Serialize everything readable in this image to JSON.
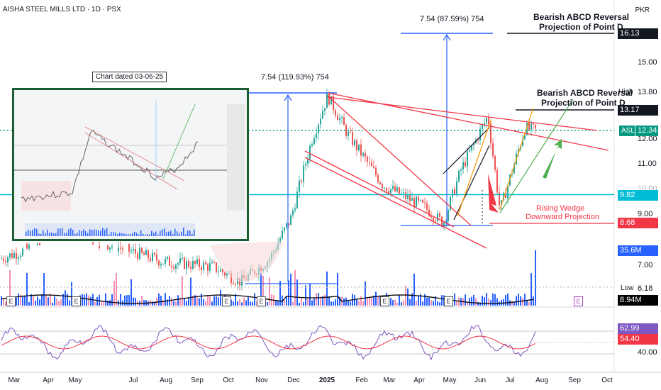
{
  "header": {
    "title": "AISHA STEEL MILLS LTD · 1D · PSX",
    "currency": "PKR"
  },
  "inset": {
    "title": "Chart dated 03-06-25"
  },
  "annotations": {
    "move_1": "7.54 (119.93%) 754",
    "move_2": "7.54 (87.59%) 754",
    "abcd_top_line1": "Bearish ABCD Reversal",
    "abcd_top_line2": "Projection of Point D",
    "abcd_mid_line1": "Bearish ABCD Reversal",
    "abcd_mid_line2": "Projection of Point D",
    "wedge_line1": "Rising Wedge",
    "wedge_line2": "Downward Projection"
  },
  "price_tags": {
    "target_1": "16.13",
    "high_label": "High",
    "high_value": "13.80",
    "target_2": "13.17",
    "symbol": "ASL",
    "last": "12.34",
    "level_cyan": "9.82",
    "level_red": "8.68",
    "volume": "35.6M",
    "low_label": "Low",
    "low_value": "6.18",
    "volume_ma": "8.94M",
    "rsi": "62.99",
    "rsi_ma": "54.40"
  },
  "y_ticks": [
    "15.00",
    "12.00",
    "11.00",
    "10.00",
    "9.00",
    "7.00",
    "40.00"
  ],
  "x_ticks": [
    "Mar",
    "Apr",
    "May",
    "Jul",
    "Aug",
    "Sep",
    "Oct",
    "Nov",
    "Dec",
    "2025",
    "Feb",
    "Mar",
    "Apr",
    "May",
    "Jun",
    "Jul",
    "Aug",
    "Sep",
    "Oct"
  ],
  "event_markers": [
    "E",
    "E",
    "E",
    "E",
    "E",
    "E",
    "E"
  ],
  "colors": {
    "up": "#26a69a",
    "down": "#ef5350",
    "bars_up": "#2962ff",
    "trend_red": "#f23645",
    "measure_blue": "#2962ff",
    "cyan_level": "#00bcd4",
    "asl_tag": "#089981",
    "rsi_line": "#7e57c2",
    "rsi_ma": "#f23645"
  },
  "chart_data": {
    "type": "candlestick",
    "symbol": "ASL",
    "timeframe": "1D",
    "ylim": [
      5.5,
      17.0
    ],
    "last_price": 12.34,
    "period_high": 13.8,
    "period_low": 6.18,
    "levels": [
      {
        "name": "target_1",
        "value": 16.13
      },
      {
        "name": "target_2",
        "value": 13.17
      },
      {
        "name": "support_cyan",
        "value": 9.82
      },
      {
        "name": "wedge_target",
        "value": 8.68
      }
    ],
    "volume": {
      "last": "35.6M",
      "ma": "8.94M"
    },
    "rsi": {
      "value": 62.99,
      "ma": 54.4,
      "levels": [
        70,
        50,
        30
      ]
    }
  }
}
